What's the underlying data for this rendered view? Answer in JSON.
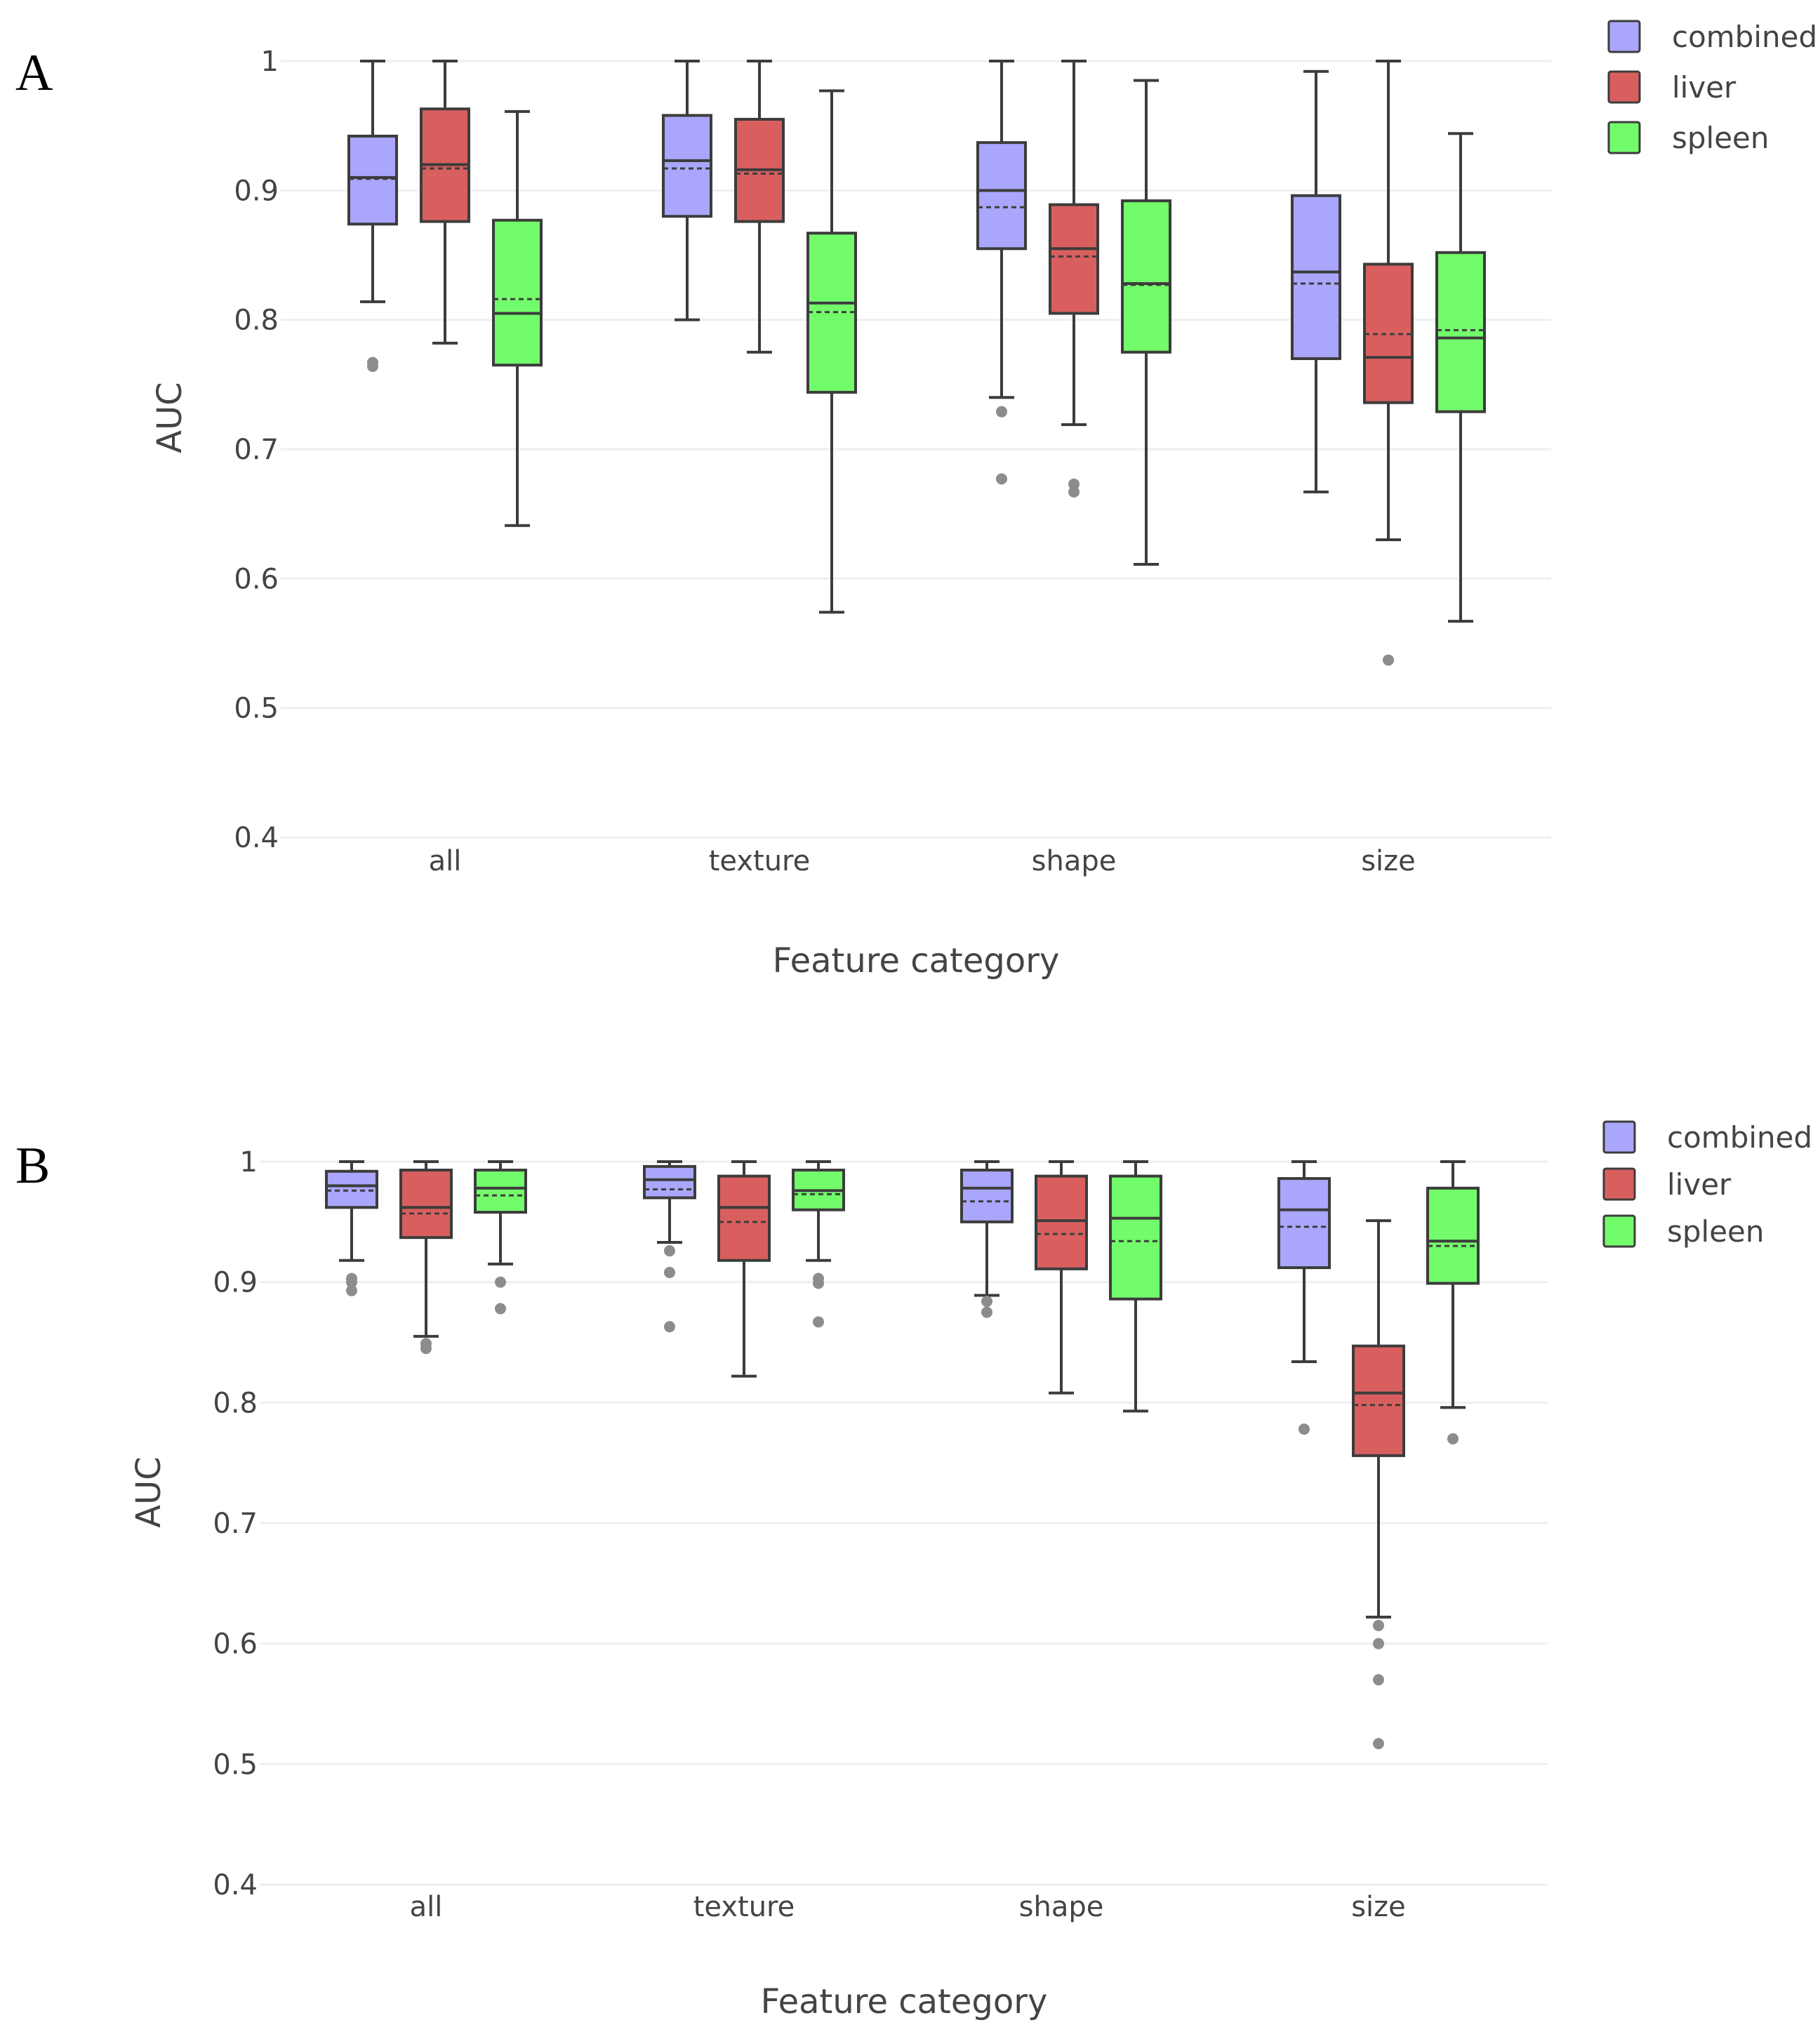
{
  "colors": {
    "combined": "#a9a6fb",
    "liver": "#d95f5f",
    "spleen": "#72fb6a",
    "outlier": "#8c8c8c",
    "stroke": "#3c3c3c"
  },
  "chart_data": [
    {
      "type": "box",
      "panel_label": "A",
      "xlabel": "Feature category",
      "ylabel": "AUC",
      "ylim": [
        0.4,
        1.0
      ],
      "yticks": [
        0.4,
        0.5,
        0.6,
        0.7,
        0.8,
        0.9,
        1
      ],
      "ytick_labels": [
        "0.4",
        "0.5",
        "0.6",
        "0.7",
        "0.8",
        "0.9",
        "1"
      ],
      "categories": [
        "all",
        "texture",
        "shape",
        "size"
      ],
      "legend": [
        "combined",
        "liver",
        "spleen"
      ],
      "series": [
        {
          "name": "combined",
          "boxes": [
            {
              "whisker_low": 0.814,
              "q1": 0.874,
              "median": 0.91,
              "mean": 0.909,
              "q3": 0.942,
              "whisker_high": 1.0,
              "outliers": [
                0.767,
                0.764
              ]
            },
            {
              "whisker_low": 0.8,
              "q1": 0.88,
              "median": 0.923,
              "mean": 0.917,
              "q3": 0.958,
              "whisker_high": 1.0,
              "outliers": []
            },
            {
              "whisker_low": 0.74,
              "q1": 0.855,
              "median": 0.9,
              "mean": 0.887,
              "q3": 0.937,
              "whisker_high": 1.0,
              "outliers": [
                0.729,
                0.677
              ]
            },
            {
              "whisker_low": 0.667,
              "q1": 0.77,
              "median": 0.837,
              "mean": 0.828,
              "q3": 0.896,
              "whisker_high": 0.992,
              "outliers": []
            }
          ]
        },
        {
          "name": "liver",
          "boxes": [
            {
              "whisker_low": 0.782,
              "q1": 0.876,
              "median": 0.92,
              "mean": 0.917,
              "q3": 0.963,
              "whisker_high": 1.0,
              "outliers": []
            },
            {
              "whisker_low": 0.775,
              "q1": 0.876,
              "median": 0.916,
              "mean": 0.913,
              "q3": 0.955,
              "whisker_high": 1.0,
              "outliers": []
            },
            {
              "whisker_low": 0.719,
              "q1": 0.805,
              "median": 0.855,
              "mean": 0.849,
              "q3": 0.889,
              "whisker_high": 1.0,
              "outliers": [
                0.673,
                0.667
              ]
            },
            {
              "whisker_low": 0.63,
              "q1": 0.736,
              "median": 0.771,
              "mean": 0.789,
              "q3": 0.843,
              "whisker_high": 1.0,
              "outliers": [
                0.537
              ]
            }
          ]
        },
        {
          "name": "spleen",
          "boxes": [
            {
              "whisker_low": 0.641,
              "q1": 0.765,
              "median": 0.805,
              "mean": 0.816,
              "q3": 0.877,
              "whisker_high": 0.961,
              "outliers": []
            },
            {
              "whisker_low": 0.574,
              "q1": 0.744,
              "median": 0.813,
              "mean": 0.806,
              "q3": 0.867,
              "whisker_high": 0.977,
              "outliers": []
            },
            {
              "whisker_low": 0.611,
              "q1": 0.775,
              "median": 0.828,
              "mean": 0.827,
              "q3": 0.892,
              "whisker_high": 0.985,
              "outliers": []
            },
            {
              "whisker_low": 0.567,
              "q1": 0.729,
              "median": 0.786,
              "mean": 0.792,
              "q3": 0.852,
              "whisker_high": 0.944,
              "outliers": []
            }
          ]
        }
      ]
    },
    {
      "type": "box",
      "panel_label": "B",
      "xlabel": "Feature category",
      "ylabel": "AUC",
      "ylim": [
        0.4,
        1.0
      ],
      "yticks": [
        0.4,
        0.5,
        0.6,
        0.7,
        0.8,
        0.9,
        1
      ],
      "ytick_labels": [
        "0.4",
        "0.5",
        "0.6",
        "0.7",
        "0.8",
        "0.9",
        "1"
      ],
      "categories": [
        "all",
        "texture",
        "shape",
        "size"
      ],
      "legend": [
        "combined",
        "liver",
        "spleen"
      ],
      "series": [
        {
          "name": "combined",
          "boxes": [
            {
              "whisker_low": 0.918,
              "q1": 0.962,
              "median": 0.98,
              "mean": 0.976,
              "q3": 0.992,
              "whisker_high": 1.0,
              "outliers": [
                0.903,
                0.9,
                0.893
              ]
            },
            {
              "whisker_low": 0.933,
              "q1": 0.97,
              "median": 0.985,
              "mean": 0.977,
              "q3": 0.996,
              "whisker_high": 1.0,
              "outliers": [
                0.926,
                0.908,
                0.863
              ]
            },
            {
              "whisker_low": 0.889,
              "q1": 0.95,
              "median": 0.978,
              "mean": 0.967,
              "q3": 0.993,
              "whisker_high": 1.0,
              "outliers": [
                0.884,
                0.875
              ]
            },
            {
              "whisker_low": 0.834,
              "q1": 0.912,
              "median": 0.96,
              "mean": 0.946,
              "q3": 0.986,
              "whisker_high": 1.0,
              "outliers": [
                0.778
              ]
            }
          ]
        },
        {
          "name": "liver",
          "boxes": [
            {
              "whisker_low": 0.855,
              "q1": 0.937,
              "median": 0.962,
              "mean": 0.957,
              "q3": 0.993,
              "whisker_high": 1.0,
              "outliers": [
                0.849,
                0.845
              ]
            },
            {
              "whisker_low": 0.822,
              "q1": 0.918,
              "median": 0.962,
              "mean": 0.95,
              "q3": 0.988,
              "whisker_high": 1.0,
              "outliers": []
            },
            {
              "whisker_low": 0.808,
              "q1": 0.911,
              "median": 0.951,
              "mean": 0.94,
              "q3": 0.988,
              "whisker_high": 1.0,
              "outliers": []
            },
            {
              "whisker_low": 0.622,
              "q1": 0.756,
              "median": 0.808,
              "mean": 0.798,
              "q3": 0.847,
              "whisker_high": 0.951,
              "outliers": [
                0.615,
                0.6,
                0.57,
                0.517
              ]
            }
          ]
        },
        {
          "name": "spleen",
          "boxes": [
            {
              "whisker_low": 0.915,
              "q1": 0.958,
              "median": 0.978,
              "mean": 0.972,
              "q3": 0.993,
              "whisker_high": 1.0,
              "outliers": [
                0.9,
                0.878
              ]
            },
            {
              "whisker_low": 0.918,
              "q1": 0.96,
              "median": 0.976,
              "mean": 0.973,
              "q3": 0.993,
              "whisker_high": 1.0,
              "outliers": [
                0.903,
                0.899,
                0.867
              ]
            },
            {
              "whisker_low": 0.793,
              "q1": 0.886,
              "median": 0.953,
              "mean": 0.934,
              "q3": 0.988,
              "whisker_high": 1.0,
              "outliers": []
            },
            {
              "whisker_low": 0.796,
              "q1": 0.899,
              "median": 0.934,
              "mean": 0.93,
              "q3": 0.978,
              "whisker_high": 1.0,
              "outliers": [
                0.77
              ]
            }
          ]
        }
      ]
    }
  ]
}
